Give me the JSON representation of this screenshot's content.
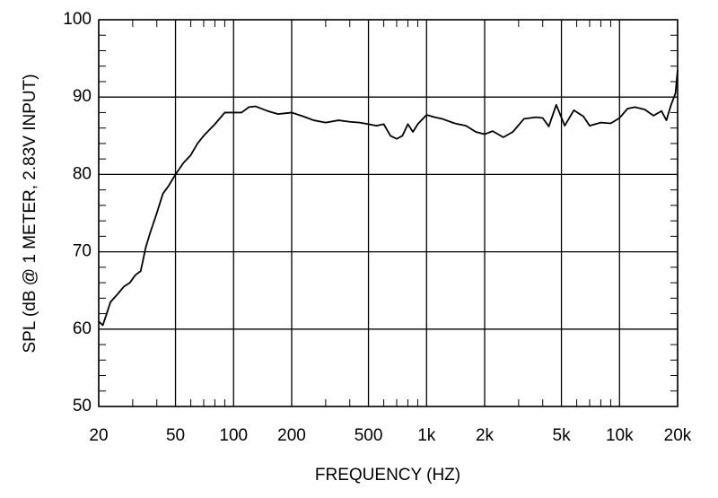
{
  "chart_data": {
    "type": "line",
    "xscale": "log",
    "grid": true,
    "color": "#000000",
    "xlabel": "FREQUENCY  (HZ)",
    "ylabel": "SPL (dB @ 1 METER, 2.83V INPUT)",
    "xlim": [
      20,
      20000
    ],
    "ylim": [
      50,
      100
    ],
    "xticks": [
      20,
      50,
      100,
      200,
      500,
      {
        "value": 1000,
        "label": "1k"
      },
      {
        "value": 2000,
        "label": "2k"
      },
      {
        "value": 5000,
        "label": "5k"
      },
      {
        "value": 10000,
        "label": "10k"
      },
      {
        "value": 20000,
        "label": "20k"
      }
    ],
    "yticks": [
      50,
      60,
      70,
      80,
      90,
      100
    ],
    "xminorticks": [
      30,
      40,
      60,
      70,
      80,
      90,
      300,
      400,
      600,
      700,
      800,
      900,
      3000,
      4000,
      6000,
      7000,
      8000,
      9000
    ],
    "yminorticks": [
      52,
      54,
      56,
      58,
      62,
      64,
      66,
      68,
      72,
      74,
      76,
      78,
      82,
      84,
      86,
      88,
      92,
      94,
      96,
      98
    ],
    "x": [
      20,
      21,
      22,
      23,
      25,
      27,
      29,
      31,
      33,
      35,
      37,
      40,
      43,
      46,
      50,
      55,
      60,
      65,
      70,
      80,
      90,
      100,
      110,
      120,
      130,
      150,
      170,
      200,
      230,
      260,
      300,
      350,
      400,
      450,
      500,
      550,
      600,
      650,
      700,
      750,
      800,
      850,
      900,
      1000,
      1100,
      1200,
      1400,
      1600,
      1800,
      2000,
      2200,
      2500,
      2800,
      3200,
      3700,
      4000,
      4300,
      4700,
      5200,
      5800,
      6500,
      7000,
      8000,
      9000,
      10000,
      11000,
      12000,
      13500,
      15000,
      16500,
      17500,
      18500,
      19500,
      20000
    ],
    "values": [
      61,
      60.5,
      62,
      63.5,
      64.5,
      65.5,
      66,
      67,
      67.5,
      70.5,
      72.5,
      75,
      77.5,
      78.5,
      80,
      81.5,
      82.5,
      84,
      85,
      86.5,
      88,
      88,
      88,
      88.7,
      88.8,
      88.2,
      87.8,
      88,
      87.5,
      87,
      86.7,
      87,
      86.8,
      86.7,
      86.5,
      86.3,
      86.5,
      85,
      84.6,
      85,
      86.5,
      85.5,
      86.5,
      87.7,
      87.4,
      87.2,
      86.6,
      86.3,
      85.5,
      85.2,
      85.6,
      84.8,
      85.5,
      87.2,
      87.4,
      87.3,
      86.2,
      89,
      86.3,
      88.3,
      87.5,
      86.3,
      86.7,
      86.6,
      87.3,
      88.5,
      88.7,
      88.4,
      87.6,
      88.2,
      87,
      89,
      90.5,
      93.5
    ]
  }
}
